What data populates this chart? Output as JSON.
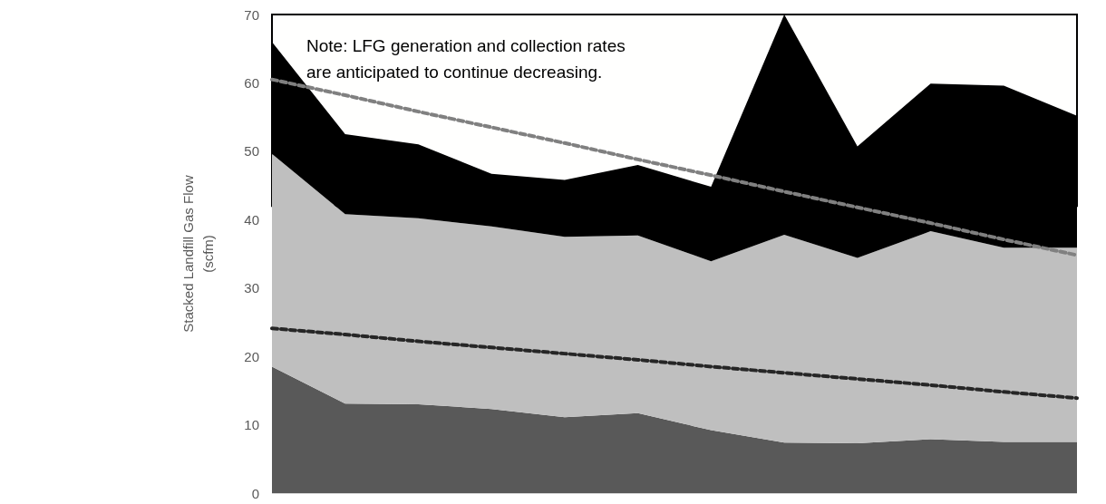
{
  "chart_data": {
    "type": "area",
    "stacked": true,
    "ylabel": "Stacked Landfill Gas Flow\n(scfm)",
    "categories": [
      null,
      null,
      null,
      null,
      null,
      null,
      null,
      null,
      null,
      null,
      null,
      null
    ],
    "series": [
      {
        "color": "#595959",
        "values": [
          18.5,
          13.1,
          13.0,
          12.3,
          11.1,
          11.7,
          9.2,
          7.4,
          7.3,
          7.9,
          7.5,
          7.5
        ]
      },
      {
        "color": "#bfbfbf",
        "values": [
          31.1,
          27.7,
          27.2,
          26.7,
          26.4,
          26.0,
          24.7,
          30.4,
          27.1,
          30.4,
          28.4,
          28.4
        ]
      },
      {
        "color": "#000000",
        "values": [
          16.4,
          11.7,
          10.8,
          7.7,
          8.3,
          10.3,
          10.9,
          32.2,
          16.3,
          21.6,
          23.7,
          19.3
        ]
      },
      {
        "type": "line",
        "color": "#808080",
        "line_style": "dashed",
        "values": [
          60.5,
          58.2,
          55.8,
          53.5,
          51.2,
          48.8,
          46.5,
          44.1,
          41.8,
          39.5,
          37.1,
          34.8
        ]
      },
      {
        "type": "line",
        "color": "#262626",
        "line_style": "dashed",
        "values": [
          24.1,
          23.2,
          22.2,
          21.3,
          20.4,
          19.5,
          18.5,
          17.6,
          16.7,
          15.8,
          14.8,
          13.9
        ]
      }
    ],
    "ylim": [
      0,
      70
    ],
    "yticks": [
      0,
      10,
      20,
      30,
      40,
      50,
      60,
      70
    ],
    "grid": "y",
    "tick_labels": "y",
    "marker": "none",
    "annotations": [
      "Note: LFG generation and collection rates\nare anticipated to continue decreasing."
    ]
  }
}
